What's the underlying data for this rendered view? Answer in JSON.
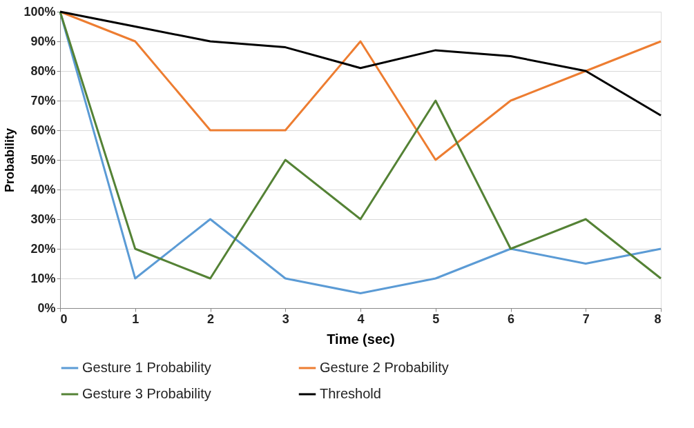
{
  "chart_data": {
    "type": "line",
    "xlabel": "Time (sec)",
    "ylabel": "Probability",
    "x": [
      0,
      1,
      2,
      3,
      4,
      5,
      6,
      7,
      8
    ],
    "xlim": [
      0,
      8
    ],
    "xticks": [
      0,
      1,
      2,
      3,
      4,
      5,
      6,
      7,
      8
    ],
    "ylim": [
      0,
      100
    ],
    "yticks": [
      {
        "value": 0,
        "label": "0%"
      },
      {
        "value": 10,
        "label": "10%"
      },
      {
        "value": 20,
        "label": "20%"
      },
      {
        "value": 30,
        "label": "30%"
      },
      {
        "value": 40,
        "label": "40%"
      },
      {
        "value": 50,
        "label": "50%"
      },
      {
        "value": 60,
        "label": "60%"
      },
      {
        "value": 70,
        "label": "70%"
      },
      {
        "value": 80,
        "label": "80%"
      },
      {
        "value": 90,
        "label": "90%"
      },
      {
        "value": 100,
        "label": "100%"
      }
    ],
    "grid": "y",
    "legend": "bottom",
    "marker": "none",
    "line_style": "solid",
    "series": [
      {
        "name": "Gesture 1 Probability",
        "color": "#5b9bd5",
        "values": [
          100,
          10,
          30,
          10,
          5,
          10,
          20,
          15,
          20
        ]
      },
      {
        "name": "Gesture 2 Probability",
        "color": "#ed7d31",
        "values": [
          100,
          90,
          60,
          60,
          90,
          50,
          70,
          80,
          90
        ]
      },
      {
        "name": "Gesture 3 Probability",
        "color": "#548235",
        "values": [
          100,
          20,
          10,
          50,
          30,
          70,
          20,
          30,
          10
        ]
      },
      {
        "name": "Threshold",
        "color": "#000000",
        "values": [
          100,
          95,
          90,
          88,
          81,
          87,
          85,
          80,
          65
        ]
      }
    ]
  }
}
